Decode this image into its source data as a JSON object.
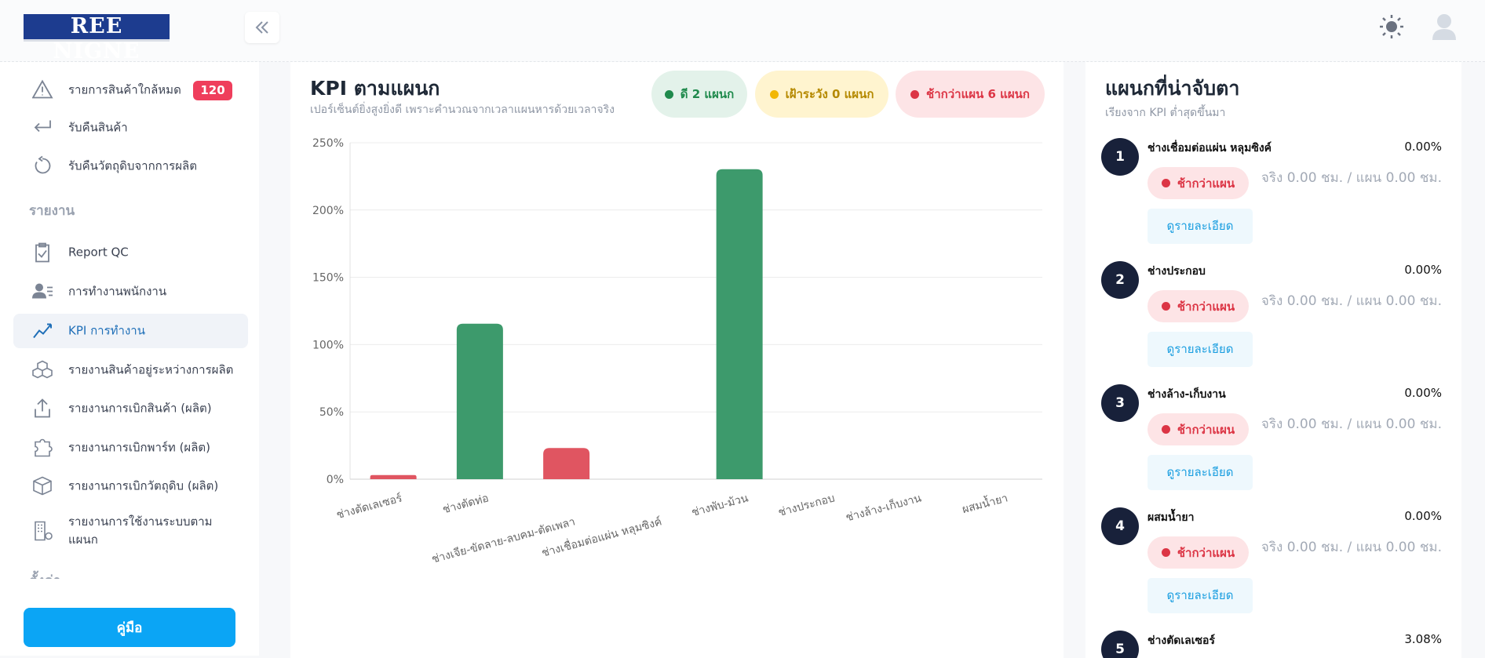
{
  "header": {
    "logo": "REE NIGNE"
  },
  "sidebar": {
    "items": [
      {
        "label": "รายการสินค้าใกล้หมด",
        "badge": "120"
      },
      {
        "label": "รับคืนสินค้า"
      },
      {
        "label": "รับคืนวัตถุดิบจากการผลิต"
      }
    ],
    "section": "รายงาน",
    "report_items": [
      "Report QC",
      "การทำงานพนักงาน",
      "KPI การทำงาน",
      "รายงานสินค้าอยู่ระหว่างการผลิต",
      "รายงานการเบิกสินค้า (ผลิต)",
      "รายงานการเบิกพาร์ท (ผลิต)",
      "รายงานการเบิกวัตถุดิบ (ผลิต)",
      "รายงานการใช้งานระบบตามแผนก"
    ],
    "section2": "ตั้งค่า",
    "manual_button": "คู่มือ"
  },
  "status_pills": [
    {
      "label": "ดี 2 แผนก",
      "color": "#1f8a4c",
      "bg": "#e3f2ea"
    },
    {
      "label": "เฝ้าระวัง 0 แผนก",
      "color": "#f2b705",
      "bg": "#fff4cf"
    },
    {
      "label": "ช้ากว่าแผน 6 แผนก",
      "color": "#dc3545",
      "bg": "#fde4e6"
    }
  ],
  "chart_data": {
    "type": "bar",
    "title": "KPI ตามแผนก",
    "subtitle": "เปอร์เซ็นต์ยิ่งสูงยิ่งดี เพราะคำนวณจากเวลาแผนหารด้วยเวลาจริง",
    "categories": [
      "ช่างตัดเลเซอร์",
      "ช่างตัดท่อ",
      "ช่างเจีย-ขัดลาย-ลบคม-ตัดเพลา",
      "ช่างเชื่อมต่อแผ่น หลุมซิงค์",
      "ช่างพับ-ม้วน",
      "ช่างประกอบ",
      "ช่างล้าง-เก็บงาน",
      "ผสมน้ำยา"
    ],
    "values": [
      3.08,
      115.5,
      23.2,
      0,
      230.3,
      0,
      0,
      0
    ],
    "colors": [
      "#e05561",
      "#3d9a6c",
      "#e05561",
      "#e05561",
      "#3d9a6c",
      "#e05561",
      "#e05561",
      "#e05561"
    ],
    "ylim": [
      0,
      250
    ],
    "yticks": [
      {
        "value": 0,
        "label": "0%"
      },
      {
        "value": 50,
        "label": "50%"
      },
      {
        "value": 100,
        "label": "100%"
      },
      {
        "value": 150,
        "label": "150%"
      },
      {
        "value": 200,
        "label": "200%"
      },
      {
        "value": 250,
        "label": "250%"
      }
    ],
    "grid": true
  },
  "watchlist": {
    "title": "แผนกที่น่าจับตา",
    "subtitle": "เรียงจาก KPI ต่ำสุดขึ้นมา",
    "items": [
      {
        "rank": 1,
        "name": "ช่างเชื่อมต่อแผ่น หลุมซิงค์",
        "percent": "0.00%",
        "status": "ช้ากว่าแผน",
        "detail": "จริง 0.00 ชม. / แผน 0.00 ชม.",
        "button": "ดูรายละเอียด"
      },
      {
        "rank": 2,
        "name": "ช่างประกอบ",
        "percent": "0.00%",
        "status": "ช้ากว่าแผน",
        "detail": "จริง 0.00 ชม. / แผน 0.00 ชม.",
        "button": "ดูรายละเอียด"
      },
      {
        "rank": 3,
        "name": "ช่างล้าง-เก็บงาน",
        "percent": "0.00%",
        "status": "ช้ากว่าแผน",
        "detail": "จริง 0.00 ชม. / แผน 0.00 ชม.",
        "button": "ดูรายละเอียด"
      },
      {
        "rank": 4,
        "name": "ผสมน้ำยา",
        "percent": "0.00%",
        "status": "ช้ากว่าแผน",
        "detail": "จริง 0.00 ชม. / แผน 0.00 ชม.",
        "button": "ดูรายละเอียด"
      },
      {
        "rank": 5,
        "name": "ช่างตัดเลเซอร์",
        "percent": "3.08%"
      }
    ]
  }
}
